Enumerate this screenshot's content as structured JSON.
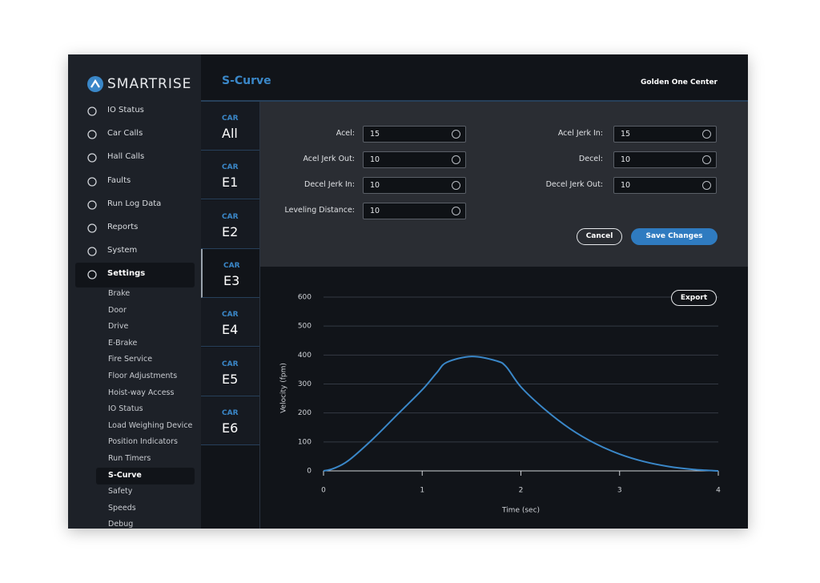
{
  "brand": "SMARTRISE",
  "header": {
    "title": "S-Curve",
    "site": "Golden One Center"
  },
  "nav": {
    "items": [
      "IO Status",
      "Car Calls",
      "Hall Calls",
      "Faults",
      "Run Log Data",
      "Reports",
      "System",
      "Settings"
    ],
    "active_item": 7,
    "subitems": [
      "Brake",
      "Door",
      "Drive",
      "E-Brake",
      "Fire Service",
      "Floor Adjustments",
      "Hoist-way Access",
      "IO Status",
      "Load Weighing Device",
      "Position Indicators",
      "Run Timers",
      "S-Curve",
      "Safety",
      "Speeds",
      "Debug"
    ],
    "active_subitem": 11
  },
  "cars": {
    "label": "CAR",
    "names": [
      "All",
      "E1",
      "E2",
      "E3",
      "E4",
      "E5",
      "E6"
    ],
    "active": 3
  },
  "form": {
    "left_fields": [
      {
        "label": "Acel:",
        "value": 15
      },
      {
        "label": "Acel Jerk Out:",
        "value": 10
      },
      {
        "label": "Decel Jerk In:",
        "value": 10
      },
      {
        "label": "Leveling Distance:",
        "value": 10
      }
    ],
    "right_fields": [
      {
        "label": "Acel Jerk In:",
        "value": 15
      },
      {
        "label": "Decel:",
        "value": 10
      },
      {
        "label": "Decel Jerk Out:",
        "value": 10
      }
    ],
    "cancel": "Cancel",
    "save": "Save Changes"
  },
  "export_button": "Export",
  "chart_data": {
    "type": "line",
    "x_label": "Time (sec)",
    "y_label": "Velocity (fpm)",
    "x": [
      0,
      0.1,
      0.25,
      0.5,
      0.75,
      1.0,
      1.15,
      1.25,
      1.5,
      1.75,
      1.85,
      2.0,
      2.25,
      2.5,
      2.75,
      3.0,
      3.25,
      3.5,
      3.75,
      4.0
    ],
    "series": [
      {
        "name": "Velocity",
        "color": "#3a87c8",
        "values": [
          0,
          8,
          35,
          110,
          195,
          280,
          340,
          375,
          395,
          380,
          360,
          290,
          210,
          145,
          95,
          58,
          32,
          15,
          5,
          0
        ]
      }
    ],
    "xlim": [
      0,
      4
    ],
    "xticks": [
      0,
      1,
      2,
      3,
      4
    ],
    "ylim": [
      0,
      600
    ],
    "yticks": [
      0,
      100,
      200,
      300,
      400,
      500,
      600
    ],
    "grid": true
  }
}
